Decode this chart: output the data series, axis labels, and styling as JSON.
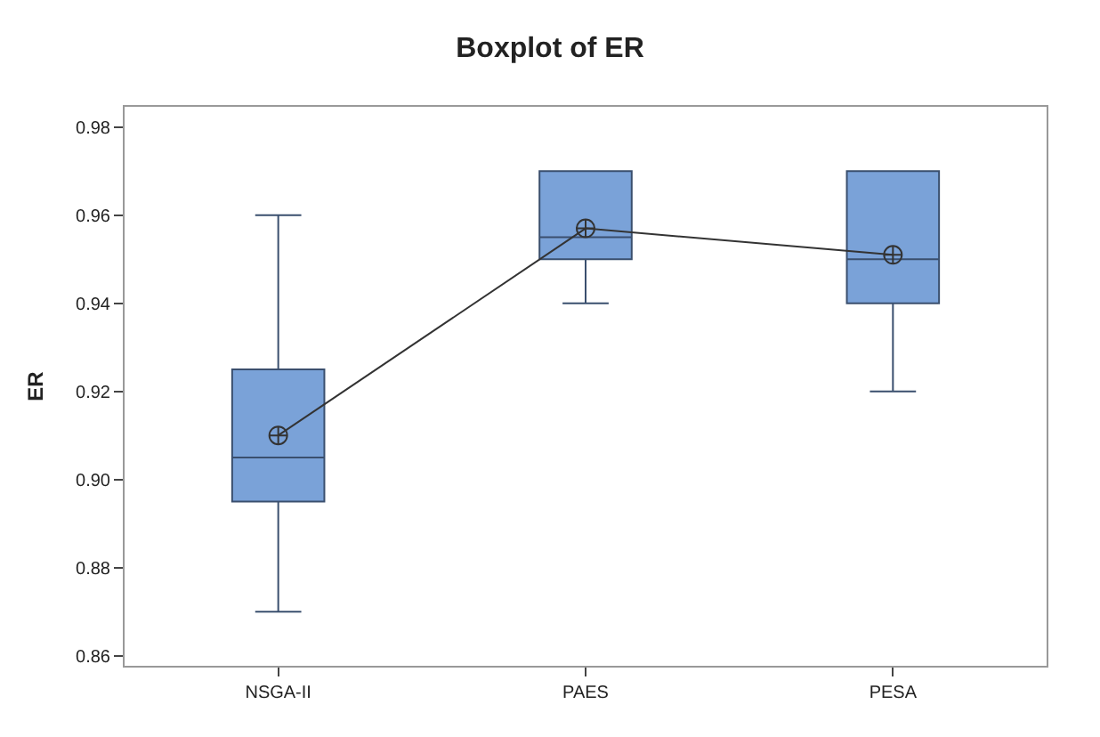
{
  "chart_data": {
    "type": "box",
    "title": "Boxplot of ER",
    "ylabel": "ER",
    "categories": [
      "NSGA-II",
      "PAES",
      "PESA"
    ],
    "ylim": [
      0.8577,
      0.9846
    ],
    "yticks": [
      {
        "value": 0.86,
        "label": "0.86"
      },
      {
        "value": 0.88,
        "label": "0.88"
      },
      {
        "value": 0.9,
        "label": "0.90"
      },
      {
        "value": 0.92,
        "label": "0.92"
      },
      {
        "value": 0.94,
        "label": "0.94"
      },
      {
        "value": 0.96,
        "label": "0.96"
      },
      {
        "value": 0.98,
        "label": "0.98"
      }
    ],
    "series": [
      {
        "color": "#7aa2d8",
        "boxes": [
          {
            "low": 0.87,
            "q1": 0.895,
            "median": 0.905,
            "q3": 0.925,
            "high": 0.96
          },
          {
            "low": 0.94,
            "q1": 0.95,
            "median": 0.955,
            "q3": 0.97,
            "high": 0.97
          },
          {
            "low": 0.92,
            "q1": 0.94,
            "median": 0.95,
            "q3": 0.97,
            "high": 0.97
          }
        ]
      },
      {
        "type": "line",
        "color": "#333333",
        "marker": "cross",
        "values": [
          0.91,
          0.957,
          0.951
        ]
      }
    ]
  }
}
